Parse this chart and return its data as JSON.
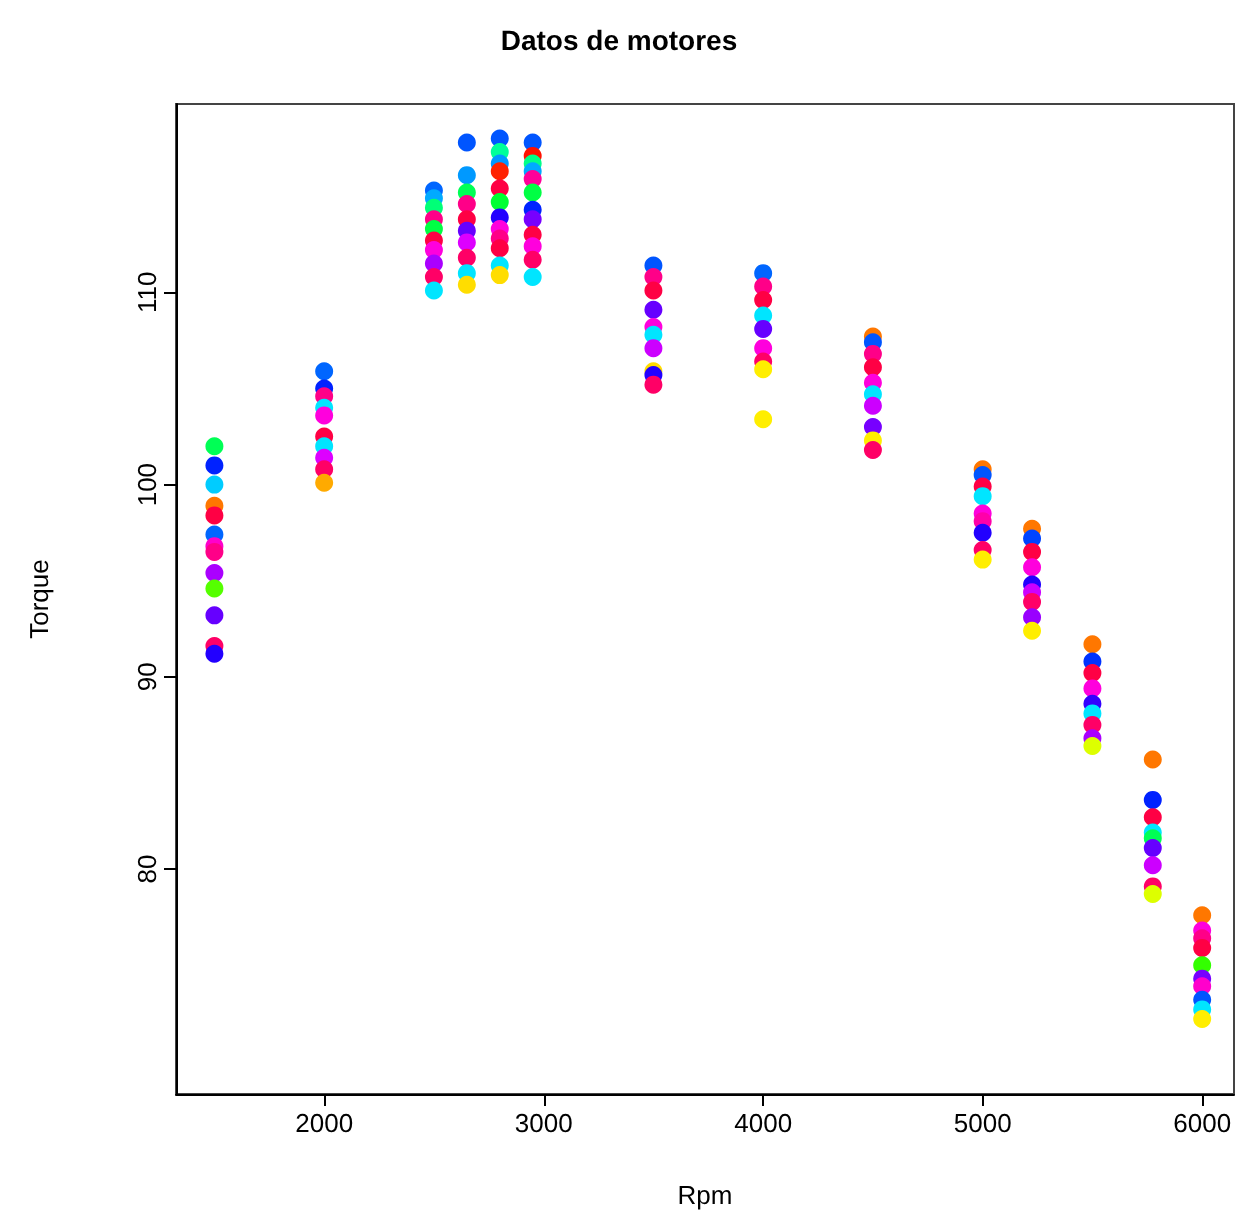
{
  "chart_data": {
    "type": "scatter",
    "title": "Datos de motores",
    "xlabel": "Rpm",
    "ylabel": "Torque",
    "xlim": [
      1325,
      6145
    ],
    "ylim": [
      68.3,
      119.8
    ],
    "xticks": [
      2000,
      3000,
      4000,
      5000,
      6000
    ],
    "yticks": [
      80,
      90,
      100,
      110
    ],
    "grid": false,
    "marker": "circle",
    "series": [
      {
        "x": [
          1500,
          1500,
          1500,
          1500,
          1500,
          1500,
          1500,
          1500,
          1500,
          1500,
          1500,
          1500,
          1500,
          2000,
          2000,
          2000,
          2000,
          2000,
          2000,
          2000,
          2000,
          2000,
          2000,
          2500,
          2500,
          2500,
          2500,
          2500,
          2500,
          2500,
          2500,
          2500,
          2500,
          2650,
          2650,
          2650,
          2650,
          2650,
          2650,
          2650,
          2650,
          2650,
          2650,
          2800,
          2800,
          2800,
          2800,
          2800,
          2800,
          2800,
          2800,
          2800,
          2800,
          2800,
          2800,
          2950,
          2950,
          2950,
          2950,
          2950,
          2950,
          2950,
          2950,
          2950,
          2950,
          2950,
          2950,
          3500,
          3500,
          3500,
          3500,
          3500,
          3500,
          3500,
          3500,
          3500,
          3500,
          4000,
          4000,
          4000,
          4000,
          4000,
          4000,
          4000,
          4000,
          4000,
          4500,
          4500,
          4500,
          4500,
          4500,
          4500,
          4500,
          4500,
          4500,
          4500,
          5000,
          5000,
          5000,
          5000,
          5000,
          5000,
          5000,
          5000,
          5000,
          5225,
          5225,
          5225,
          5225,
          5225,
          5225,
          5225,
          5225,
          5225,
          5500,
          5500,
          5500,
          5500,
          5500,
          5500,
          5500,
          5500,
          5500,
          5775,
          5775,
          5775,
          5775,
          5775,
          5775,
          5775,
          5775,
          5775,
          6000,
          6000,
          6000,
          6000,
          6000,
          6000,
          6000,
          6000,
          6000,
          6000
        ],
        "values": [
          102.0,
          101.0,
          100.0,
          98.9,
          98.4,
          97.4,
          96.8,
          96.5,
          95.4,
          94.6,
          93.2,
          91.6,
          91.2,
          105.9,
          105.0,
          104.6,
          104.0,
          103.6,
          102.5,
          102.0,
          101.4,
          100.8,
          100.1,
          115.3,
          114.9,
          114.4,
          113.8,
          113.3,
          112.7,
          112.2,
          111.5,
          110.8,
          110.1,
          117.8,
          116.1,
          115.2,
          114.6,
          113.8,
          113.2,
          112.6,
          111.8,
          111.0,
          110.4,
          118.0,
          117.3,
          116.7,
          116.3,
          115.4,
          114.7,
          113.9,
          113.3,
          112.8,
          112.3,
          111.4,
          110.9,
          117.8,
          117.1,
          116.7,
          116.3,
          115.9,
          115.2,
          114.3,
          113.8,
          113.0,
          112.4,
          111.7,
          110.8,
          111.4,
          110.8,
          110.1,
          109.1,
          108.2,
          107.8,
          107.1,
          105.9,
          105.7,
          105.2,
          111.0,
          110.3,
          109.6,
          108.8,
          108.1,
          107.1,
          106.4,
          106.0,
          103.4,
          107.7,
          107.4,
          106.8,
          106.1,
          105.3,
          104.7,
          104.1,
          103.0,
          102.3,
          101.8,
          100.8,
          100.5,
          99.9,
          99.4,
          98.5,
          98.1,
          97.5,
          96.6,
          96.1,
          97.7,
          97.2,
          96.5,
          95.7,
          94.8,
          94.4,
          93.9,
          93.1,
          92.4,
          91.7,
          90.8,
          90.2,
          89.4,
          88.6,
          88.1,
          87.5,
          86.8,
          86.4,
          85.7,
          83.6,
          82.7,
          81.9,
          81.6,
          81.1,
          80.2,
          79.1,
          78.7,
          77.6,
          76.8,
          76.4,
          75.9,
          75.0,
          74.3,
          73.9,
          73.2,
          72.7,
          72.2
        ],
        "colors": [
          "#00ff55",
          "#0022ff",
          "#00ccff",
          "#ff7700",
          "#ff0044",
          "#0066ff",
          "#ff00cc",
          "#ff0088",
          "#aa00ff",
          "#55ff00",
          "#6600ff",
          "#ff0066",
          "#2200ff",
          "#0066ff",
          "#0022ff",
          "#ff0088",
          "#00e5ff",
          "#ff00dd",
          "#ff0044",
          "#00e5ff",
          "#dd00ff",
          "#ff0066",
          "#ffaa00",
          "#0066ff",
          "#00aaff",
          "#00ff77",
          "#ff0088",
          "#00ff44",
          "#ff0044",
          "#ff00dd",
          "#aa00ff",
          "#ff0066",
          "#00e5ff",
          "#0055ff",
          "#0099ff",
          "#00ff55",
          "#ff0088",
          "#ff0044",
          "#6600ff",
          "#dd00ff",
          "#ff0066",
          "#00e5ff",
          "#ffdd00",
          "#0055ff",
          "#00ff99",
          "#0099ff",
          "#ff2200",
          "#ff0044",
          "#00ff33",
          "#2200ff",
          "#ff00dd",
          "#ff0088",
          "#ff0044",
          "#00e5ff",
          "#ffdd00",
          "#0055ff",
          "#ff1100",
          "#00ff88",
          "#00aaff",
          "#ff0099",
          "#00ff44",
          "#0022ff",
          "#7700ff",
          "#ff0044",
          "#ff00dd",
          "#ff0066",
          "#00e5ff",
          "#0055ff",
          "#ff0088",
          "#ff0044",
          "#6600ff",
          "#ff00dd",
          "#00e5ff",
          "#cc00ff",
          "#ffdd00",
          "#2200ff",
          "#ff0066",
          "#0066ff",
          "#ff0088",
          "#ff0044",
          "#00e5ff",
          "#6600ff",
          "#ff00dd",
          "#ff0066",
          "#ffee00",
          "#ffee00",
          "#ff7700",
          "#0055ff",
          "#ff0088",
          "#ff0044",
          "#ff00dd",
          "#00e5ff",
          "#cc00ff",
          "#7700ff",
          "#ffee00",
          "#ff0066",
          "#ff7700",
          "#0055ff",
          "#ff0044",
          "#00e5ff",
          "#ff00dd",
          "#ff00aa",
          "#2200ff",
          "#ff0066",
          "#ffee00",
          "#ff7700",
          "#0044ff",
          "#ff0044",
          "#ff00dd",
          "#2200ff",
          "#cc00ff",
          "#ff0066",
          "#9900ff",
          "#ffee00",
          "#ff7700",
          "#0033ff",
          "#ff0044",
          "#ff00dd",
          "#3300ff",
          "#00e5ff",
          "#ff0066",
          "#aa00ff",
          "#ddff00",
          "#ff7700",
          "#0022ff",
          "#ff0044",
          "#00e5ff",
          "#00ff55",
          "#6600ff",
          "#cc00ff",
          "#ff0066",
          "#ddff00",
          "#ff7700",
          "#ff00dd",
          "#ff0088",
          "#ff0044",
          "#33ff00",
          "#7700ff",
          "#ff00cc",
          "#0055ff",
          "#00e5ff",
          "#ffee00"
        ]
      }
    ]
  }
}
